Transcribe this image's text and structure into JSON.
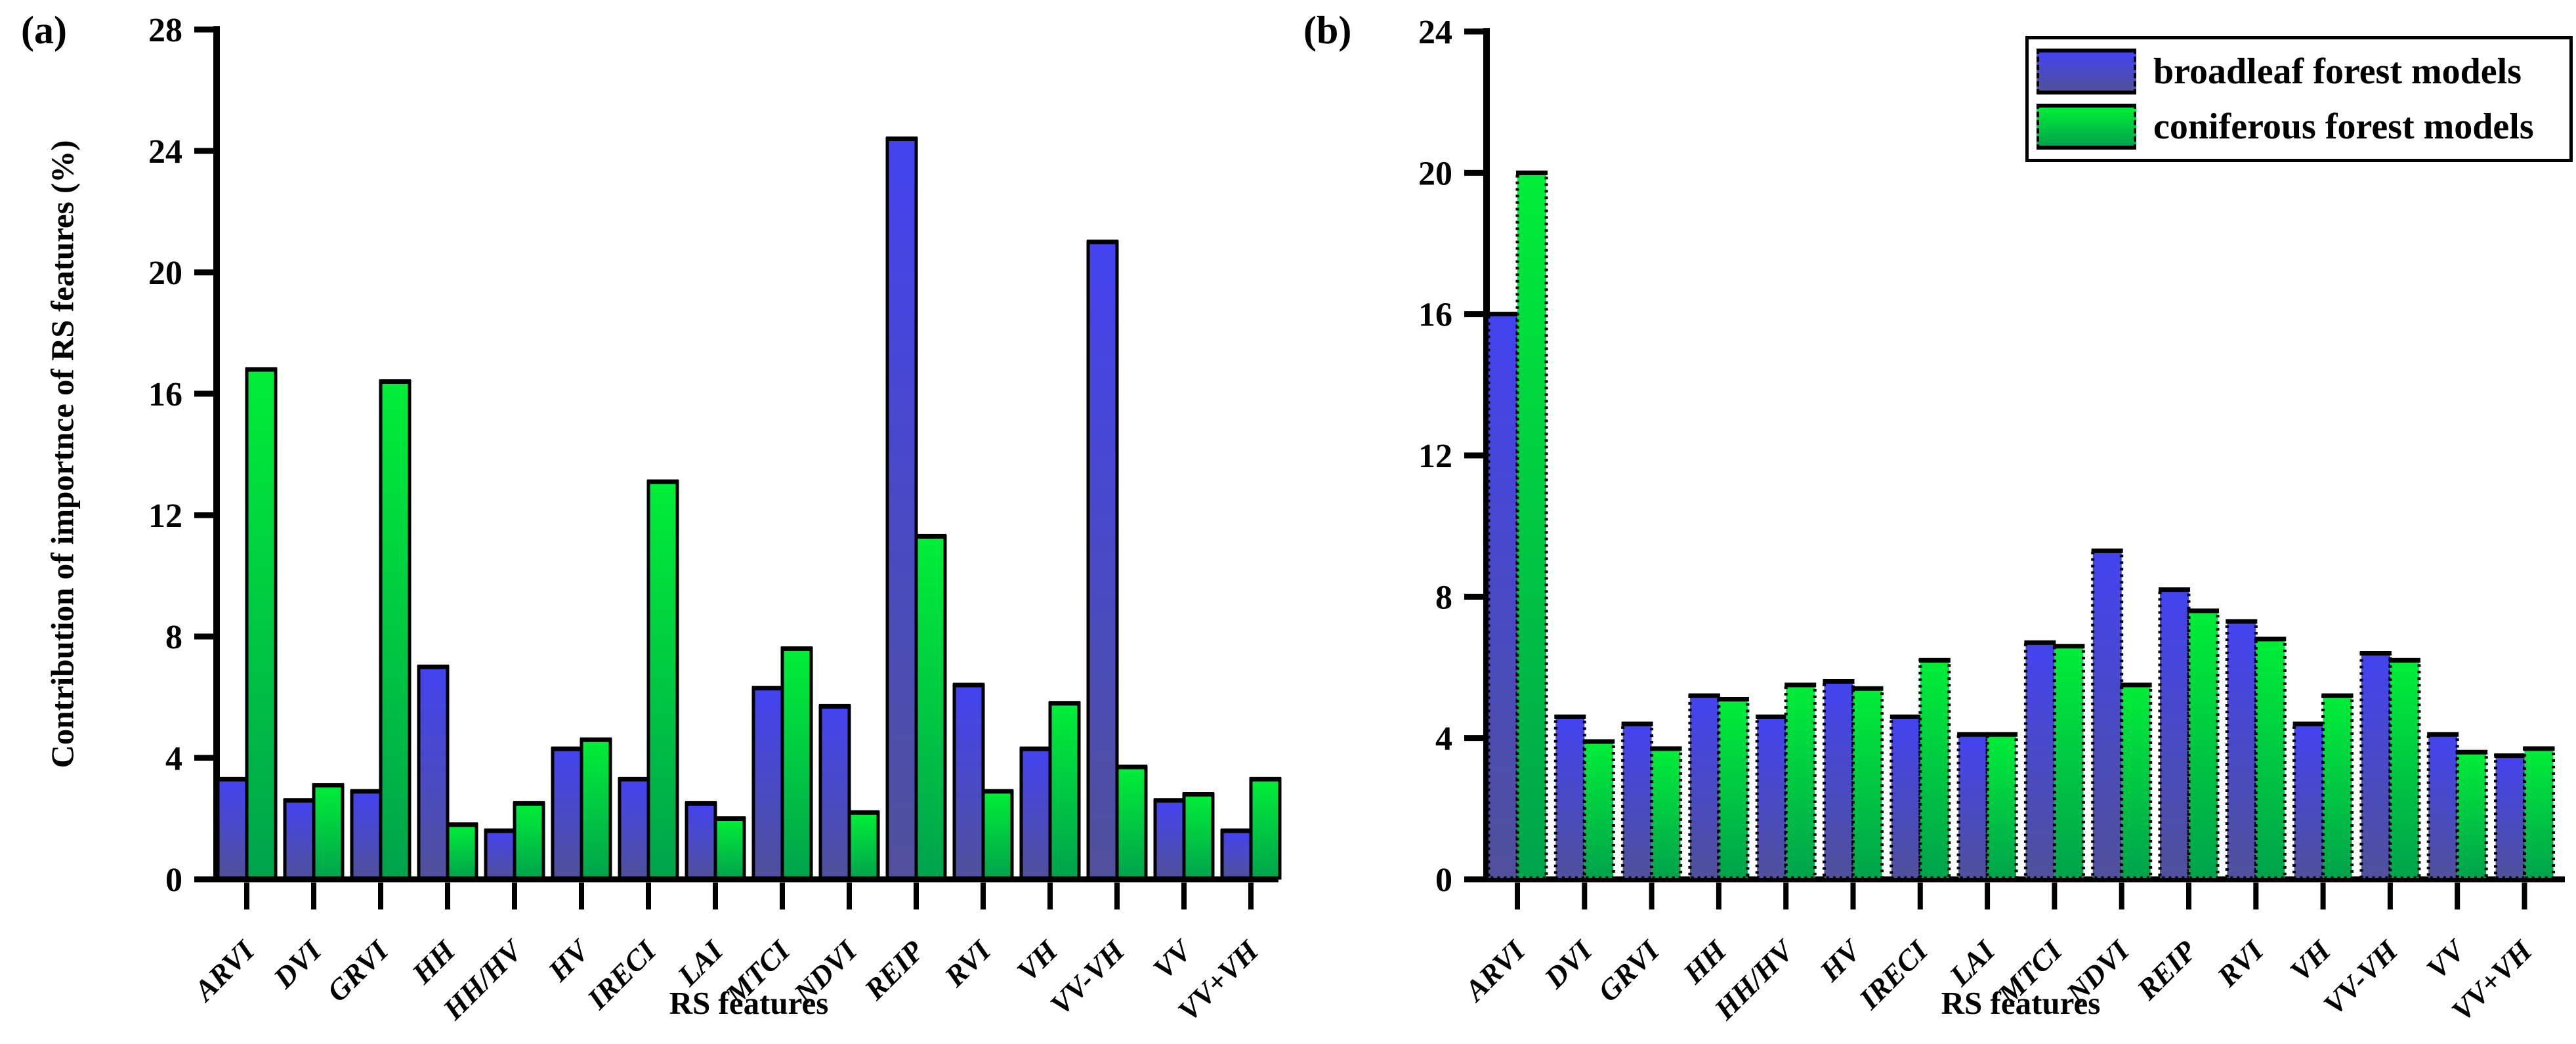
{
  "figure": {
    "panel_a_letter": "(a)",
    "panel_b_letter": "(b)"
  },
  "colors": {
    "broadleaf_top": "#4343F0",
    "broadleaf_bottom": "#50509B",
    "coniferous_top": "#00EE38",
    "coniferous_bottom": "#00A34C",
    "axis": "#000000"
  },
  "legend": {
    "items": [
      {
        "label": "broadleaf forest models",
        "series": "broadleaf"
      },
      {
        "label": "coniferous forest models",
        "series": "coniferous"
      }
    ]
  },
  "chart_data": [
    {
      "type": "bar",
      "panel": "a",
      "title": "",
      "xlabel": "RS features",
      "ylabel": "Contribution of importnce of RS features (%)",
      "ylim": [
        0,
        28
      ],
      "yticks": [
        0,
        4,
        8,
        12,
        16,
        20,
        24,
        28
      ],
      "grid": false,
      "bar_border": "solid",
      "categories": [
        "ARVI",
        "DVI",
        "GRVI",
        "HH",
        "HH/HV",
        "HV",
        "IRECI",
        "LAI",
        "MTCI",
        "NDVI",
        "REIP",
        "RVI",
        "VH",
        "VV-VH",
        "VV",
        "VV+VH"
      ],
      "series": [
        {
          "name": "broadleaf forest models",
          "values": [
            3.3,
            2.6,
            2.9,
            7.0,
            1.6,
            4.3,
            3.3,
            2.5,
            6.3,
            5.7,
            24.4,
            6.4,
            4.3,
            21.0,
            2.6,
            1.6
          ]
        },
        {
          "name": "coniferous forest models",
          "values": [
            16.8,
            3.1,
            16.4,
            1.8,
            2.5,
            4.6,
            13.1,
            2.0,
            7.6,
            2.2,
            11.3,
            2.9,
            5.8,
            3.7,
            2.8,
            3.3
          ]
        }
      ]
    },
    {
      "type": "bar",
      "panel": "b",
      "title": "",
      "xlabel": "RS features",
      "ylabel": "",
      "ylim": [
        0,
        24
      ],
      "yticks": [
        0,
        4,
        8,
        12,
        16,
        20,
        24
      ],
      "grid": false,
      "bar_border": "dashed",
      "legend_position": "upper right",
      "categories": [
        "ARVI",
        "DVI",
        "GRVI",
        "HH",
        "HH/HV",
        "HV",
        "IRECI",
        "LAI",
        "MTCI",
        "NDVI",
        "REIP",
        "RVI",
        "VH",
        "VV-VH",
        "VV",
        "VV+VH"
      ],
      "series": [
        {
          "name": "broadleaf forest models",
          "values": [
            16.0,
            4.6,
            4.4,
            5.2,
            4.6,
            5.6,
            4.6,
            4.1,
            6.7,
            9.3,
            8.2,
            7.3,
            4.4,
            6.4,
            4.1,
            3.5
          ]
        },
        {
          "name": "coniferous forest models",
          "values": [
            20.0,
            3.9,
            3.7,
            5.1,
            5.5,
            5.4,
            6.2,
            4.1,
            6.6,
            5.5,
            7.6,
            6.8,
            5.2,
            6.2,
            3.6,
            3.7
          ]
        }
      ]
    }
  ]
}
